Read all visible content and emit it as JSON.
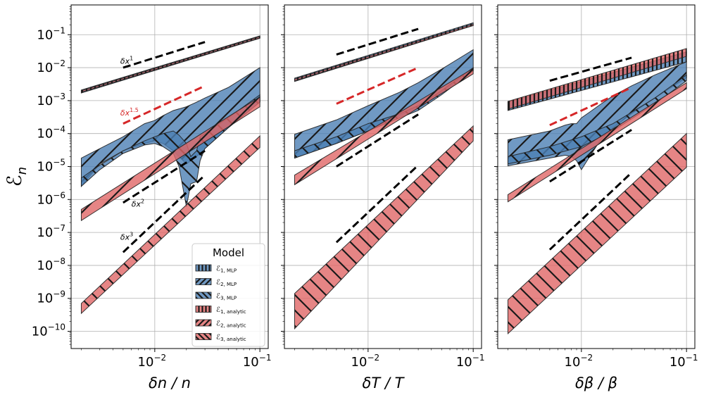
{
  "chart_data": {
    "type": "area",
    "ylabel": "ℰ",
    "ylabel_sub": "n",
    "y_scale": "log",
    "x_scale": "log",
    "ylim": [
      3e-11,
      0.8
    ],
    "xlim": [
      0.0016,
      0.12
    ],
    "grid": true,
    "y_ticks": [
      {
        "base": "10",
        "exp": "−1",
        "value": 0.1
      },
      {
        "base": "10",
        "exp": "−2",
        "value": 0.01
      },
      {
        "base": "10",
        "exp": "−3",
        "value": 0.001
      },
      {
        "base": "10",
        "exp": "−4",
        "value": 0.0001
      },
      {
        "base": "10",
        "exp": "−5",
        "value": 1e-05
      },
      {
        "base": "10",
        "exp": "−6",
        "value": 1e-06
      },
      {
        "base": "10",
        "exp": "−7",
        "value": 1e-07
      },
      {
        "base": "10",
        "exp": "−8",
        "value": 1e-08
      },
      {
        "base": "10",
        "exp": "−9",
        "value": 1e-09
      },
      {
        "base": "10",
        "exp": "−10",
        "value": 1e-10
      }
    ],
    "x_ticks": [
      {
        "base": "10",
        "exp": "−2",
        "value": 0.01
      },
      {
        "base": "10",
        "exp": "−1",
        "value": 0.1
      }
    ],
    "legend": {
      "title": "Model",
      "location": "lower-right of first panel",
      "entries": [
        {
          "label": "ℰ",
          "sub": "1, MLP",
          "color": "#4c80b4",
          "hatch": "vertical"
        },
        {
          "label": "ℰ",
          "sub": "2, MLP",
          "color": "#4c80b4",
          "hatch": "diagonal"
        },
        {
          "label": "ℰ",
          "sub": "3, MLP",
          "color": "#4c80b4",
          "hatch": "backdiagonal"
        },
        {
          "label": "ℰ",
          "sub": "1, analytic",
          "color": "#e06666",
          "hatch": "vertical"
        },
        {
          "label": "ℰ",
          "sub": "2, analytic",
          "color": "#e06666",
          "hatch": "diagonal"
        },
        {
          "label": "ℰ",
          "sub": "3, analytic",
          "color": "#e06666",
          "hatch": "backdiagonal"
        }
      ]
    },
    "panels": [
      {
        "xlabel": "δn / n",
        "annotations": [
          {
            "text": "δx",
            "exp": "1",
            "color": "#000000",
            "x": 0.0047,
            "y": 0.013
          },
          {
            "text": "δx",
            "exp": "1.5",
            "color": "#d62728",
            "x": 0.0047,
            "y": 0.00035
          },
          {
            "text": "δx",
            "exp": "2",
            "color": "#000000",
            "x": 0.006,
            "y": 6e-07
          },
          {
            "text": "δx",
            "exp": "3",
            "color": "#000000",
            "x": 0.0047,
            "y": 6e-08
          }
        ],
        "guides": [
          {
            "color": "#000000",
            "x": [
              0.005,
              0.03
            ],
            "y": [
              0.01,
              0.06
            ]
          },
          {
            "color": "#d62728",
            "x": [
              0.005,
              0.03
            ],
            "y": [
              0.0002,
              0.0028
            ]
          },
          {
            "color": "#000000",
            "x": [
              0.005,
              0.03
            ],
            "y": [
              8e-07,
              3e-05
            ]
          },
          {
            "color": "#000000",
            "x": [
              0.005,
              0.03
            ],
            "y": [
              2.5e-08,
              5.5e-06
            ]
          }
        ],
        "series": [
          {
            "name": "ℰ1, MLP",
            "color": "#4c80b4",
            "hatch": "vertical",
            "x": [
              0.002,
              0.1
            ],
            "lower": [
              0.0017,
              0.078
            ],
            "upper": [
              0.0021,
              0.092
            ]
          },
          {
            "name": "ℰ2, MLP",
            "color": "#4c80b4",
            "hatch": "diagonal",
            "x": [
              0.002,
              0.003,
              0.005,
              0.008,
              0.01,
              0.012,
              0.015,
              0.02,
              0.025,
              0.03,
              0.05,
              0.1
            ],
            "lower": [
              2.5e-06,
              1.2e-05,
              3e-05,
              5e-05,
              6e-05,
              5e-05,
              3e-05,
              1.2e-05,
              2e-05,
              3.5e-05,
              0.00015,
              0.0009
            ],
            "upper": [
              1.8e-05,
              3.5e-05,
              8e-05,
              0.0002,
              0.00025,
              0.00035,
              0.0005,
              0.00065,
              0.0009,
              0.0012,
              0.0025,
              0.01
            ]
          },
          {
            "name": "ℰ3, MLP",
            "color": "#4c80b4",
            "hatch": "backdiagonal",
            "x": [
              0.002,
              0.003,
              0.005,
              0.008,
              0.01,
              0.012,
              0.015,
              0.017,
              0.02,
              0.022,
              0.025,
              0.027,
              0.03,
              0.05,
              0.1
            ],
            "lower": [
              2.5e-06,
              8e-06,
              2.5e-05,
              4.5e-05,
              5e-05,
              4e-05,
              2.5e-05,
              1e-05,
              6e-07,
              3e-06,
              3.5e-06,
              1.5e-05,
              3.5e-05,
              0.00015,
              0.0009
            ],
            "upper": [
              4.5e-06,
              1.1e-05,
              3e-05,
              6e-05,
              8e-05,
              0.0001,
              0.00012,
              9e-05,
              5e-05,
              2e-05,
              3e-05,
              8e-05,
              0.0001,
              0.0003,
              0.0015
            ]
          },
          {
            "name": "ℰ1, analytic",
            "color": "#e06666",
            "hatch": "vertical",
            "x": [
              0.002,
              0.1
            ],
            "lower": [
              0.0018,
              0.08
            ],
            "upper": [
              0.002,
              0.088
            ]
          },
          {
            "name": "ℰ2, analytic",
            "color": "#e06666",
            "hatch": "diagonal",
            "x": [
              0.002,
              0.1
            ],
            "lower": [
              2.3e-07,
              0.00065
            ],
            "upper": [
              5e-07,
              0.0013
            ]
          },
          {
            "name": "ℰ3, analytic",
            "color": "#e06666",
            "hatch": "backdiagonal",
            "x": [
              0.002,
              0.1
            ],
            "lower": [
              3.5e-10,
              3.8e-05
            ],
            "upper": [
              7e-10,
              8.5e-05
            ]
          }
        ]
      },
      {
        "xlabel": "δT / T",
        "annotations": [],
        "guides": [
          {
            "color": "#000000",
            "x": [
              0.005,
              0.03
            ],
            "y": [
              0.025,
              0.15
            ]
          },
          {
            "color": "#d62728",
            "x": [
              0.005,
              0.03
            ],
            "y": [
              0.0008,
              0.01
            ]
          },
          {
            "color": "#000000",
            "x": [
              0.005,
              0.03
            ],
            "y": [
              1e-05,
              0.00038
            ]
          },
          {
            "color": "#000000",
            "x": [
              0.005,
              0.03
            ],
            "y": [
              5e-08,
              1.1e-05
            ]
          }
        ],
        "series": [
          {
            "name": "ℰ1, MLP",
            "color": "#4c80b4",
            "hatch": "vertical",
            "x": [
              0.002,
              0.1
            ],
            "lower": [
              0.0038,
              0.19
            ],
            "upper": [
              0.0048,
              0.23
            ]
          },
          {
            "name": "ℰ2, MLP",
            "color": "#4c80b4",
            "hatch": "diagonal",
            "x": [
              0.002,
              0.005,
              0.01,
              0.02,
              0.03,
              0.05,
              0.1
            ],
            "lower": [
              1.8e-05,
              5e-05,
              0.00012,
              0.00035,
              0.0006,
              0.0018,
              0.009
            ],
            "upper": [
              9.5e-05,
              0.00026,
              0.0007,
              0.0018,
              0.0035,
              0.009,
              0.035
            ]
          },
          {
            "name": "ℰ3, MLP",
            "color": "#4c80b4",
            "hatch": "backdiagonal",
            "x": [
              0.002,
              0.005,
              0.01,
              0.02,
              0.03,
              0.05,
              0.1
            ],
            "lower": [
              1.8e-05,
              5e-05,
              0.00012,
              0.0003,
              0.0005,
              0.0015,
              0.008
            ],
            "upper": [
              3e-05,
              8e-05,
              0.0002,
              0.0004,
              0.0007,
              0.002,
              0.01
            ]
          },
          {
            "name": "ℰ1, analytic",
            "color": "#e06666",
            "hatch": "vertical",
            "x": [
              0.002,
              0.1
            ],
            "lower": [
              0.004,
              0.19
            ],
            "upper": [
              0.0045,
              0.21
            ]
          },
          {
            "name": "ℰ2, analytic",
            "color": "#e06666",
            "hatch": "diagonal",
            "x": [
              0.002,
              0.1
            ],
            "lower": [
              2.8e-06,
              0.0065
            ],
            "upper": [
              5.5e-06,
              0.0095
            ]
          },
          {
            "name": "ℰ3, analytic",
            "color": "#e06666",
            "hatch": "backdiagonal",
            "x": [
              0.002,
              0.1
            ],
            "lower": [
              1.2e-10,
              6e-05
            ],
            "upper": [
              1.4e-09,
              0.00017
            ]
          }
        ]
      },
      {
        "xlabel": "δβ / β",
        "annotations": [],
        "guides": [
          {
            "color": "#000000",
            "x": [
              0.005,
              0.03
            ],
            "y": [
              0.004,
              0.02
            ]
          },
          {
            "color": "#d62728",
            "x": [
              0.005,
              0.03
            ],
            "y": [
              0.00018,
              0.0025
            ]
          },
          {
            "color": "#000000",
            "x": [
              0.005,
              0.03
            ],
            "y": [
              3.5e-06,
              0.00013
            ]
          },
          {
            "color": "#000000",
            "x": [
              0.005,
              0.03
            ],
            "y": [
              3e-08,
              6.5e-06
            ]
          }
        ],
        "series": [
          {
            "name": "ℰ1, MLP",
            "color": "#4c80b4",
            "hatch": "vertical",
            "x": [
              0.002,
              0.1
            ],
            "lower": [
              0.0005,
              0.015
            ],
            "upper": [
              0.0009,
              0.03
            ]
          },
          {
            "name": "ℰ2, MLP",
            "color": "#4c80b4",
            "hatch": "diagonal",
            "x": [
              0.002,
              0.005,
              0.007,
              0.008,
              0.009,
              0.01,
              0.012,
              0.015,
              0.02,
              0.03,
              0.05,
              0.1
            ],
            "lower": [
              1.05e-05,
              1.8e-05,
              2.2e-05,
              2e-05,
              1.5e-05,
              8e-06,
              2e-05,
              6e-05,
              0.00015,
              0.0004,
              0.0012,
              0.005
            ],
            "upper": [
              6.5e-05,
              0.00012,
              0.00018,
              0.0002,
              0.0002,
              0.0003,
              0.00045,
              0.00075,
              0.0014,
              0.0028,
              0.006,
              0.015
            ]
          },
          {
            "name": "ℰ3, MLP",
            "color": "#4c80b4",
            "hatch": "backdiagonal",
            "x": [
              0.002,
              0.005,
              0.01,
              0.02,
              0.05,
              0.1
            ],
            "lower": [
              1.2e-05,
              2.2e-05,
              4e-05,
              0.00012,
              0.0008,
              0.004
            ],
            "upper": [
              2e-05,
              4e-05,
              8e-05,
              0.0002,
              0.0012,
              0.006
            ]
          },
          {
            "name": "ℰ1, analytic",
            "color": "#e06666",
            "hatch": "vertical",
            "x": [
              0.002,
              0.1
            ],
            "lower": [
              0.00055,
              0.022
            ],
            "upper": [
              0.00095,
              0.038
            ]
          },
          {
            "name": "ℰ2, analytic",
            "color": "#e06666",
            "hatch": "diagonal",
            "x": [
              0.002,
              0.1
            ],
            "lower": [
              8.5e-07,
              0.0023
            ],
            "upper": [
              1.4e-06,
              0.0035
            ]
          },
          {
            "name": "ℰ3, analytic",
            "color": "#e06666",
            "hatch": "backdiagonal",
            "x": [
              0.002,
              0.1
            ],
            "lower": [
              8.5e-11,
              9.5e-06
            ],
            "upper": [
              9e-10,
              0.0001
            ]
          }
        ]
      }
    ]
  }
}
